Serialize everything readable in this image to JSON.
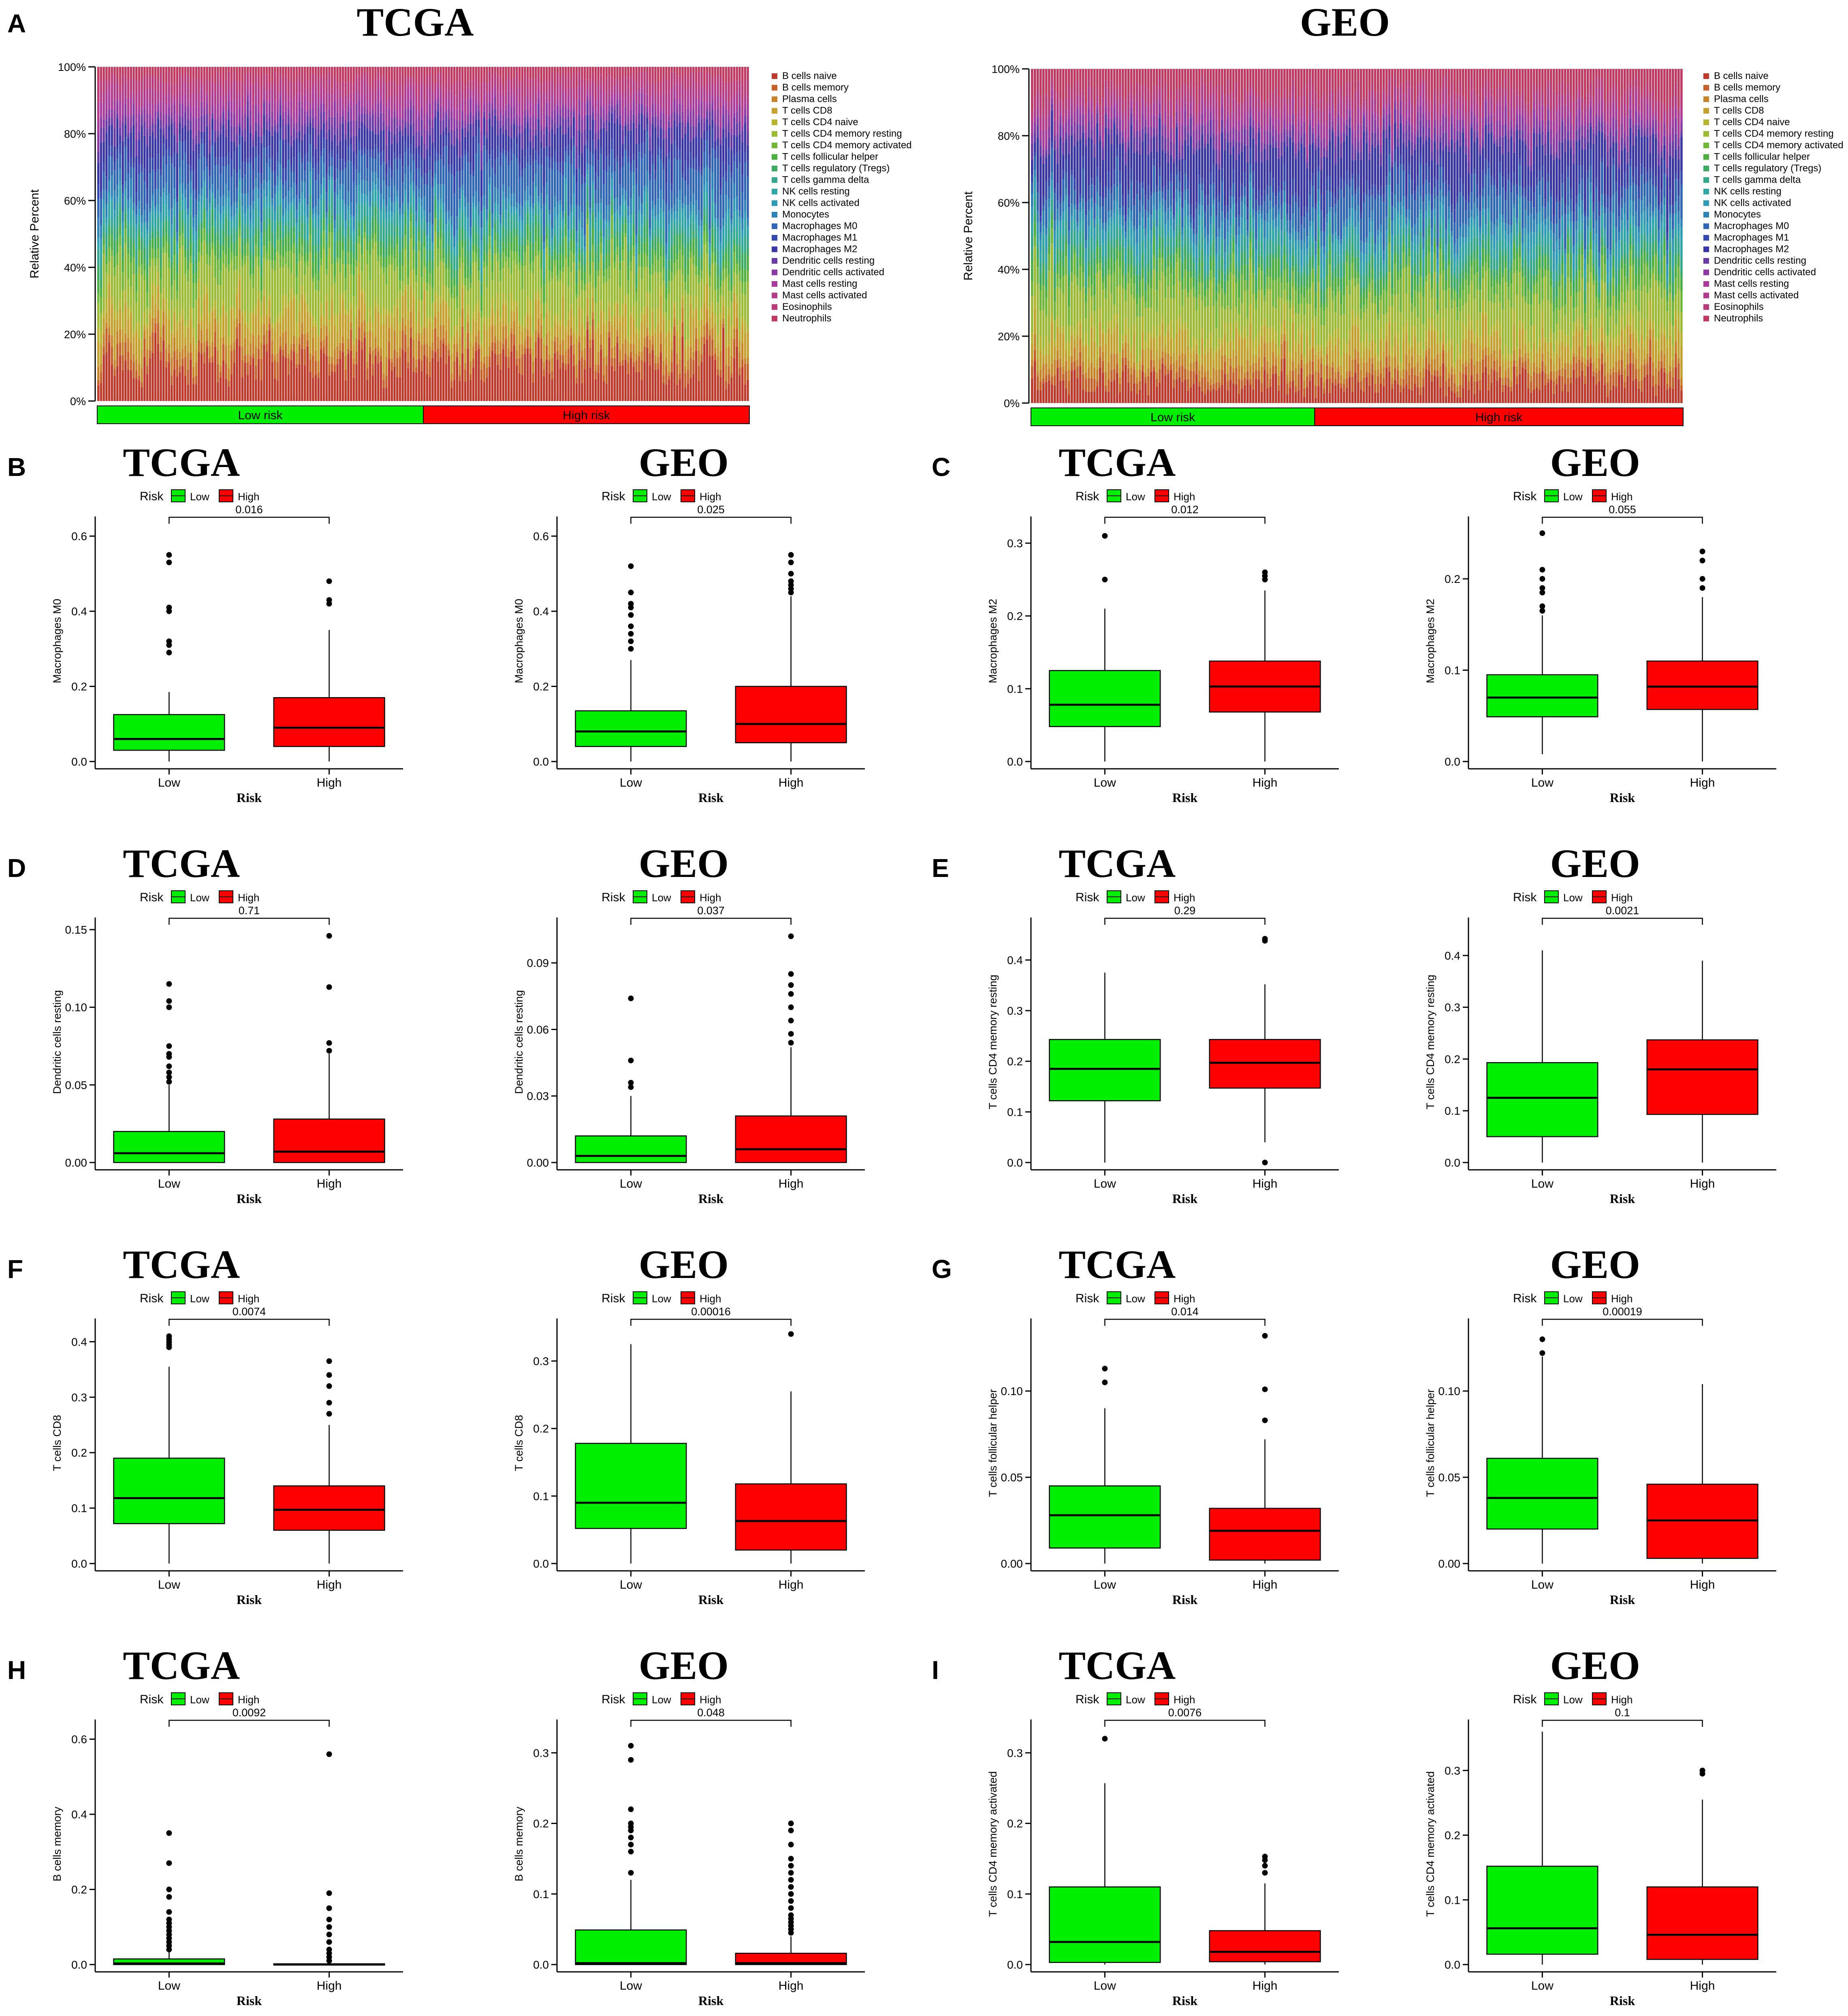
{
  "chart_data": {
    "type": "figure",
    "panel_A": {
      "label": "A",
      "type": "stacked-bar",
      "ylabel": "Relative Percent",
      "yticks": [
        "0%",
        "20%",
        "40%",
        "60%",
        "80%",
        "100%"
      ],
      "cell_types": [
        "B cells naive",
        "B cells memory",
        "Plasma cells",
        "T cells CD8",
        "T cells CD4 naive",
        "T cells CD4 memory resting",
        "T cells CD4 memory activated",
        "T cells follicular helper",
        "T cells regulatory (Tregs)",
        "T cells gamma delta",
        "NK cells resting",
        "NK cells activated",
        "Monocytes",
        "Macrophages M0",
        "Macrophages M1",
        "Macrophages M2",
        "Dendritic cells resting",
        "Dendritic cells activated",
        "Mast cells resting",
        "Mast cells activated",
        "Eosinophils",
        "Neutrophils"
      ],
      "cell_colors": [
        "#c0392b",
        "#c8602a",
        "#c9842a",
        "#c5a02c",
        "#b8b430",
        "#9bbb34",
        "#70b838",
        "#4cb040",
        "#3aab60",
        "#33a88a",
        "#2fa6a8",
        "#2e9bb8",
        "#2e84b8",
        "#2f66b6",
        "#3649b0",
        "#3a36a8",
        "#6a3aa8",
        "#8e3aa6",
        "#a93a9e",
        "#b43a8c",
        "#bd3a78",
        "#c23a62"
      ],
      "charts": [
        {
          "title": "TCGA",
          "n_samples": 240,
          "low_fraction": 0.5,
          "group_labels": [
            "Low risk",
            "High risk"
          ]
        },
        {
          "title": "GEO",
          "n_samples": 230,
          "low_fraction": 0.435,
          "group_labels": [
            "Low risk",
            "High risk"
          ]
        }
      ]
    },
    "boxplots": [
      {
        "panel": "B",
        "title": "TCGA",
        "ylabel": "Macrophages M0",
        "ylim": [
          0,
          0.62
        ],
        "yticks": [
          0,
          0.2,
          0.4,
          0.6
        ],
        "ytick_labels": [
          "0.0",
          "0.2",
          "0.4",
          "0.6"
        ],
        "pvalue": "0.016",
        "low": {
          "min": 0,
          "q1": 0.03,
          "median": 0.06,
          "q3": 0.125,
          "max": 0.185,
          "outliers": [
            0.29,
            0.31,
            0.32,
            0.4,
            0.41,
            0.53,
            0.55
          ]
        },
        "high": {
          "min": 0,
          "q1": 0.04,
          "median": 0.09,
          "q3": 0.17,
          "max": 0.35,
          "outliers": [
            0.42,
            0.43,
            0.48
          ]
        }
      },
      {
        "panel": "",
        "title": "GEO",
        "ylabel": "Macrophages M0",
        "ylim": [
          0,
          0.62
        ],
        "yticks": [
          0,
          0.2,
          0.4,
          0.6
        ],
        "ytick_labels": [
          "0.0",
          "0.2",
          "0.4",
          "0.6"
        ],
        "pvalue": "0.025",
        "low": {
          "min": 0,
          "q1": 0.04,
          "median": 0.08,
          "q3": 0.135,
          "max": 0.27,
          "outliers": [
            0.3,
            0.32,
            0.34,
            0.36,
            0.39,
            0.41,
            0.42,
            0.45,
            0.52
          ]
        },
        "high": {
          "min": 0,
          "q1": 0.05,
          "median": 0.1,
          "q3": 0.2,
          "max": 0.44,
          "outliers": [
            0.45,
            0.46,
            0.47,
            0.48,
            0.5,
            0.53,
            0.55
          ]
        }
      },
      {
        "panel": "C",
        "title": "TCGA",
        "ylabel": "Macrophages M2",
        "ylim": [
          0,
          0.32
        ],
        "yticks": [
          0,
          0.1,
          0.2,
          0.3
        ],
        "ytick_labels": [
          "0.0",
          "0.1",
          "0.2",
          "0.3"
        ],
        "pvalue": "0.012",
        "low": {
          "min": 0,
          "q1": 0.048,
          "median": 0.078,
          "q3": 0.125,
          "max": 0.21,
          "outliers": [
            0.25,
            0.31
          ]
        },
        "high": {
          "min": 0,
          "q1": 0.068,
          "median": 0.103,
          "q3": 0.138,
          "max": 0.235,
          "outliers": [
            0.25,
            0.255,
            0.26
          ]
        }
      },
      {
        "panel": "",
        "title": "GEO",
        "ylabel": "Macrophages M2",
        "ylim": [
          0,
          0.255
        ],
        "yticks": [
          0,
          0.1,
          0.2
        ],
        "ytick_labels": [
          "0.0",
          "0.1",
          "0.2"
        ],
        "pvalue": "0.055",
        "low": {
          "min": 0.008,
          "q1": 0.049,
          "median": 0.07,
          "q3": 0.095,
          "max": 0.16,
          "outliers": [
            0.165,
            0.17,
            0.185,
            0.19,
            0.2,
            0.21,
            0.25
          ]
        },
        "high": {
          "min": 0,
          "q1": 0.057,
          "median": 0.082,
          "q3": 0.11,
          "max": 0.18,
          "outliers": [
            0.19,
            0.2,
            0.22,
            0.23
          ]
        }
      },
      {
        "panel": "D",
        "title": "TCGA",
        "ylabel": "Dendritic cells resting",
        "ylim": [
          0,
          0.15
        ],
        "yticks": [
          0,
          0.05,
          0.1,
          0.15
        ],
        "ytick_labels": [
          "0.00",
          "0.05",
          "0.10",
          "0.15"
        ],
        "pvalue": "0.71",
        "low": {
          "min": 0,
          "q1": 0,
          "median": 0.006,
          "q3": 0.02,
          "max": 0.05,
          "outliers": [
            0.052,
            0.055,
            0.058,
            0.062,
            0.068,
            0.07,
            0.075,
            0.1,
            0.104,
            0.115
          ]
        },
        "high": {
          "min": 0,
          "q1": 0,
          "median": 0.007,
          "q3": 0.028,
          "max": 0.07,
          "outliers": [
            0.072,
            0.077,
            0.113,
            0.146
          ]
        }
      },
      {
        "panel": "",
        "title": "GEO",
        "ylabel": "Dendritic cells resting",
        "ylim": [
          0,
          0.105
        ],
        "yticks": [
          0,
          0.03,
          0.06,
          0.09
        ],
        "ytick_labels": [
          "0.00",
          "0.03",
          "0.06",
          "0.09"
        ],
        "pvalue": "0.037",
        "low": {
          "min": 0,
          "q1": 0,
          "median": 0.003,
          "q3": 0.012,
          "max": 0.03,
          "outliers": [
            0.034,
            0.036,
            0.046,
            0.074
          ]
        },
        "high": {
          "min": 0,
          "q1": 0,
          "median": 0.006,
          "q3": 0.021,
          "max": 0.052,
          "outliers": [
            0.054,
            0.058,
            0.064,
            0.07,
            0.076,
            0.08,
            0.085,
            0.102
          ]
        }
      },
      {
        "panel": "E",
        "title": "TCGA",
        "ylabel": "T cells CD4 memory resting",
        "ylim": [
          0,
          0.46
        ],
        "yticks": [
          0,
          0.1,
          0.2,
          0.3,
          0.4
        ],
        "ytick_labels": [
          "0.0",
          "0.1",
          "0.2",
          "0.3",
          "0.4"
        ],
        "pvalue": "0.29",
        "low": {
          "min": 0,
          "q1": 0.122,
          "median": 0.185,
          "q3": 0.243,
          "max": 0.375,
          "outliers": []
        },
        "high": {
          "min": 0.04,
          "q1": 0.147,
          "median": 0.197,
          "q3": 0.243,
          "max": 0.352,
          "outliers": [
            0,
            0.438,
            0.442
          ]
        }
      },
      {
        "panel": "",
        "title": "GEO",
        "ylabel": "T cells CD4 memory resting",
        "ylim": [
          0,
          0.45
        ],
        "yticks": [
          0,
          0.1,
          0.2,
          0.3,
          0.4
        ],
        "ytick_labels": [
          "0.0",
          "0.1",
          "0.2",
          "0.3",
          "0.4"
        ],
        "pvalue": "0.0021",
        "low": {
          "min": 0,
          "q1": 0.05,
          "median": 0.125,
          "q3": 0.193,
          "max": 0.41,
          "outliers": []
        },
        "high": {
          "min": 0,
          "q1": 0.093,
          "median": 0.18,
          "q3": 0.237,
          "max": 0.39,
          "outliers": []
        }
      },
      {
        "panel": "F",
        "title": "TCGA",
        "ylabel": "T cells CD8",
        "ylim": [
          0,
          0.42
        ],
        "yticks": [
          0,
          0.1,
          0.2,
          0.3,
          0.4
        ],
        "ytick_labels": [
          "0.0",
          "0.1",
          "0.2",
          "0.3",
          "0.4"
        ],
        "pvalue": "0.0074",
        "low": {
          "min": 0,
          "q1": 0.072,
          "median": 0.118,
          "q3": 0.19,
          "max": 0.355,
          "outliers": [
            0.39,
            0.395,
            0.4,
            0.405,
            0.41
          ]
        },
        "high": {
          "min": 0,
          "q1": 0.06,
          "median": 0.097,
          "q3": 0.14,
          "max": 0.25,
          "outliers": [
            0.27,
            0.29,
            0.32,
            0.34,
            0.365
          ]
        }
      },
      {
        "panel": "",
        "title": "GEO",
        "ylabel": "T cells CD8",
        "ylim": [
          0,
          0.345
        ],
        "yticks": [
          0,
          0.1,
          0.2,
          0.3
        ],
        "ytick_labels": [
          "0.0",
          "0.1",
          "0.2",
          "0.3"
        ],
        "pvalue": "0.00016",
        "low": {
          "min": 0,
          "q1": 0.052,
          "median": 0.09,
          "q3": 0.178,
          "max": 0.325,
          "outliers": []
        },
        "high": {
          "min": 0,
          "q1": 0.02,
          "median": 0.063,
          "q3": 0.118,
          "max": 0.255,
          "outliers": [
            0.34
          ]
        }
      },
      {
        "panel": "G",
        "title": "TCGA",
        "ylabel": "T cells follicular helper",
        "ylim": [
          0,
          0.135
        ],
        "yticks": [
          0,
          0.05,
          0.1
        ],
        "ytick_labels": [
          "0.00",
          "0.05",
          "0.10"
        ],
        "pvalue": "0.014",
        "low": {
          "min": 0,
          "q1": 0.009,
          "median": 0.028,
          "q3": 0.045,
          "max": 0.09,
          "outliers": [
            0.105,
            0.113
          ]
        },
        "high": {
          "min": 0,
          "q1": 0.002,
          "median": 0.019,
          "q3": 0.032,
          "max": 0.072,
          "outliers": [
            0.083,
            0.101,
            0.132
          ]
        }
      },
      {
        "panel": "",
        "title": "GEO",
        "ylabel": "T cells follicular helper",
        "ylim": [
          0,
          0.135
        ],
        "yticks": [
          0,
          0.05,
          0.1
        ],
        "ytick_labels": [
          "0.00",
          "0.05",
          "0.10"
        ],
        "pvalue": "0.00019",
        "low": {
          "min": 0,
          "q1": 0.02,
          "median": 0.038,
          "q3": 0.061,
          "max": 0.12,
          "outliers": [
            0.122,
            0.13
          ]
        },
        "high": {
          "min": 0,
          "q1": 0.003,
          "median": 0.025,
          "q3": 0.046,
          "max": 0.104,
          "outliers": []
        }
      },
      {
        "panel": "H",
        "title": "TCGA",
        "ylabel": "B cells memory",
        "ylim": [
          0,
          0.62
        ],
        "yticks": [
          0,
          0.2,
          0.4,
          0.6
        ],
        "ytick_labels": [
          "0.0",
          "0.2",
          "0.4",
          "0.6"
        ],
        "pvalue": "0.0092",
        "low": {
          "min": 0,
          "q1": 0,
          "median": 0.003,
          "q3": 0.015,
          "max": 0.035,
          "outliers": [
            0.04,
            0.05,
            0.06,
            0.07,
            0.08,
            0.09,
            0.1,
            0.11,
            0.12,
            0.14,
            0.18,
            0.2,
            0.27,
            0.35
          ]
        },
        "high": {
          "min": 0,
          "q1": 0,
          "median": 0,
          "q3": 0.002,
          "max": 0.005,
          "outliers": [
            0.01,
            0.02,
            0.03,
            0.04,
            0.06,
            0.08,
            0.1,
            0.12,
            0.15,
            0.19,
            0.56
          ]
        }
      },
      {
        "panel": "",
        "title": "GEO",
        "ylabel": "B cells memory",
        "ylim": [
          0,
          0.33
        ],
        "yticks": [
          0,
          0.1,
          0.2,
          0.3
        ],
        "ytick_labels": [
          "0.0",
          "0.1",
          "0.2",
          "0.3"
        ],
        "pvalue": "0.048",
        "low": {
          "min": 0,
          "q1": 0,
          "median": 0.002,
          "q3": 0.049,
          "max": 0.12,
          "outliers": [
            0.13,
            0.16,
            0.17,
            0.18,
            0.19,
            0.195,
            0.2,
            0.22,
            0.29,
            0.31
          ]
        },
        "high": {
          "min": 0,
          "q1": 0,
          "median": 0.002,
          "q3": 0.016,
          "max": 0.04,
          "outliers": [
            0.045,
            0.05,
            0.055,
            0.06,
            0.065,
            0.07,
            0.08,
            0.09,
            0.1,
            0.11,
            0.12,
            0.13,
            0.14,
            0.15,
            0.17,
            0.19,
            0.2
          ]
        }
      },
      {
        "panel": "I",
        "title": "TCGA",
        "ylabel": "T cells CD4 memory activated",
        "ylim": [
          0,
          0.33
        ],
        "yticks": [
          0,
          0.1,
          0.2,
          0.3
        ],
        "ytick_labels": [
          "0.0",
          "0.1",
          "0.2",
          "0.3"
        ],
        "pvalue": "0.0076",
        "low": {
          "min": 0,
          "q1": 0.003,
          "median": 0.032,
          "q3": 0.11,
          "max": 0.257,
          "outliers": [
            0.32
          ]
        },
        "high": {
          "min": 0,
          "q1": 0.004,
          "median": 0.018,
          "q3": 0.048,
          "max": 0.115,
          "outliers": [
            0.13,
            0.14,
            0.148,
            0.153
          ]
        }
      },
      {
        "panel": "",
        "title": "GEO",
        "ylabel": "T cells CD4 memory activated",
        "ylim": [
          0,
          0.36
        ],
        "yticks": [
          0,
          0.1,
          0.2,
          0.3
        ],
        "ytick_labels": [
          "0.0",
          "0.1",
          "0.2",
          "0.3"
        ],
        "pvalue": "0.1",
        "low": {
          "min": 0,
          "q1": 0.016,
          "median": 0.056,
          "q3": 0.152,
          "max": 0.36,
          "outliers": []
        },
        "high": {
          "min": 0,
          "q1": 0.008,
          "median": 0.046,
          "q3": 0.12,
          "max": 0.255,
          "outliers": [
            0.295,
            0.3
          ]
        }
      }
    ],
    "legend": {
      "title": "Risk",
      "low": "Low",
      "high": "High"
    },
    "xlabel": "Risk",
    "categories": [
      "Low",
      "High"
    ],
    "colors": {
      "low": "#00ee00",
      "high": "#ff0000"
    }
  }
}
